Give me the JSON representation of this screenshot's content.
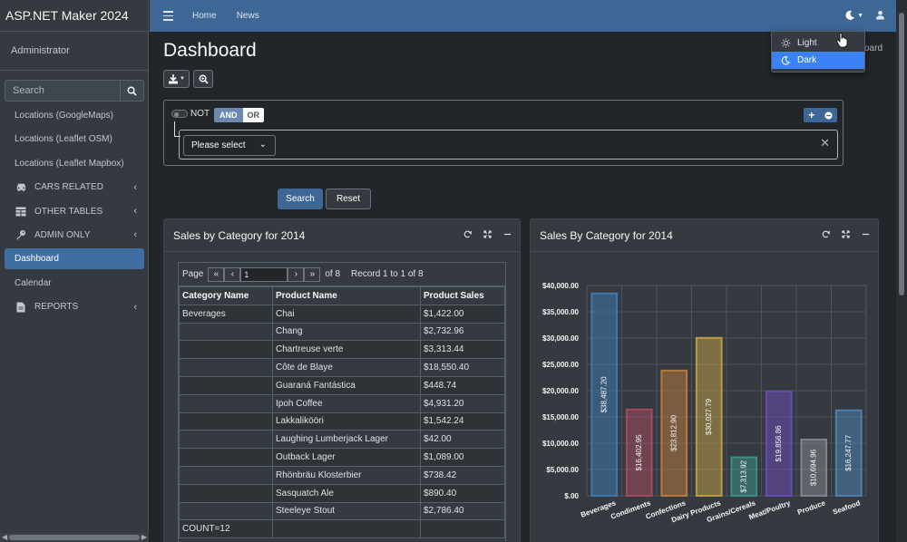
{
  "app": {
    "brand": "ASP.NET Maker 2024",
    "user": "Administrator"
  },
  "sidebar": {
    "search_placeholder": "Search",
    "items": [
      {
        "label": "Locations (GoogleMaps)",
        "icon": "",
        "chevron": false
      },
      {
        "label": "Locations (Leaflet OSM)",
        "icon": "",
        "chevron": false
      },
      {
        "label": "Locations (Leaflet Mapbox)",
        "icon": "",
        "chevron": false
      },
      {
        "label": "CARS RELATED",
        "icon": "car-icon",
        "chevron": true
      },
      {
        "label": "OTHER TABLES",
        "icon": "table-icon",
        "chevron": true
      },
      {
        "label": "ADMIN ONLY",
        "icon": "key-icon",
        "chevron": true
      },
      {
        "label": "Dashboard",
        "icon": "",
        "chevron": false,
        "active": true
      },
      {
        "label": "Calendar",
        "icon": "",
        "chevron": false
      },
      {
        "label": "REPORTS",
        "icon": "document-icon",
        "chevron": true
      }
    ]
  },
  "topbar": {
    "home": "Home",
    "news": "News",
    "color": "#3e6796"
  },
  "theme_menu": {
    "light": "Light",
    "dark": "Dark",
    "active": "Dark",
    "active_color": "#3b82f6"
  },
  "page": {
    "title": "Dashboard",
    "breadcrumb": "oard"
  },
  "filter": {
    "not_label": "NOT",
    "and_label": "AND",
    "or_label": "OR",
    "select_value": "Please select"
  },
  "actions": {
    "search": "Search",
    "reset": "Reset"
  },
  "report": {
    "title": "Sales by Category for 2014",
    "pager": {
      "page_label": "Page",
      "page_value": "1",
      "of_label": "of 8",
      "record_label": "Record 1 to 1 of 8"
    },
    "columns": [
      "Category Name",
      "Product Name",
      "Product Sales"
    ],
    "rows": [
      [
        "Beverages",
        "Chai",
        "$1,422.00"
      ],
      [
        "",
        "Chang",
        "$2,732.96"
      ],
      [
        "",
        "Chartreuse verte",
        "$3,313.44"
      ],
      [
        "",
        "Côte de Blaye",
        "$18,550.40"
      ],
      [
        "",
        "Guaraná Fantástica",
        "$448.74"
      ],
      [
        "",
        "Ipoh Coffee",
        "$4,931.20"
      ],
      [
        "",
        "Lakkalikööri",
        "$1,542.24"
      ],
      [
        "",
        "Laughing Lumberjack Lager",
        "$42.00"
      ],
      [
        "",
        "Outback Lager",
        "$1,089.00"
      ],
      [
        "",
        "Rhönbräu Klosterbier",
        "$738.42"
      ],
      [
        "",
        "Sasquatch Ale",
        "$890.40"
      ],
      [
        "",
        "Steeleye Stout",
        "$2,786.40"
      ],
      [
        "COUNT=12",
        "",
        ""
      ]
    ]
  },
  "chart_card": {
    "title": "Sales By Category for 2014"
  },
  "chart_data": {
    "type": "bar",
    "categories": [
      "Beverages",
      "Condiments",
      "Confections",
      "Dairy Products",
      "Grains/Cereals",
      "Meat/Poultry",
      "Produce",
      "Seafood"
    ],
    "values": [
      38487.2,
      16402.95,
      23812.9,
      30027.79,
      7313.92,
      19856.86,
      10694.96,
      16247.77
    ],
    "value_labels": [
      "$38,487.20",
      "$16,402.95",
      "$23,812.90",
      "$30,027.79",
      "$7,313.92",
      "$19,856.86",
      "$10,694.96",
      "$16,247.77"
    ],
    "colors": [
      "#3f78ab",
      "#a34a5e",
      "#b7783c",
      "#b99a45",
      "#3c8f86",
      "#6a4ab0",
      "#808589",
      "#4f7fae"
    ],
    "ylim": [
      0,
      40000
    ],
    "yticks": [
      "$.00",
      "$5,000.00",
      "$10,000.00",
      "$15,000.00",
      "$20,000.00",
      "$25,000.00",
      "$30,000.00",
      "$35,000.00",
      "$40,000.00"
    ],
    "grid": true,
    "title": "",
    "xlabel": "",
    "ylabel": ""
  }
}
